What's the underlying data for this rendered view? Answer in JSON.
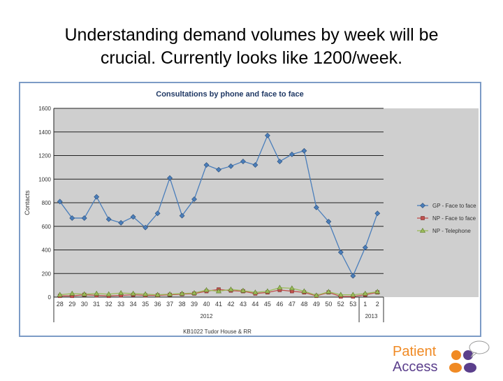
{
  "slide": {
    "title_line1": "Understanding demand volumes by week will be",
    "title_line2": "crucial.  Currently looks like 1200/week."
  },
  "chart_data": {
    "type": "line",
    "title": "Consultations by phone and face to face",
    "ylabel": "Contacts",
    "xlabel": "KB1022 Tudor House & RR",
    "ylim": [
      0,
      1600
    ],
    "yticks": [
      0,
      200,
      400,
      600,
      800,
      1000,
      1200,
      1400,
      1600
    ],
    "grid": true,
    "legend": "right",
    "categories": [
      "28",
      "29",
      "30",
      "31",
      "32",
      "33",
      "34",
      "35",
      "36",
      "37",
      "38",
      "39",
      "40",
      "41",
      "42",
      "43",
      "44",
      "45",
      "46",
      "47",
      "48",
      "49",
      "50",
      "52",
      "53",
      "1",
      "2"
    ],
    "year_groups": [
      {
        "label": "2012",
        "start": 0,
        "end": 24
      },
      {
        "label": "2013",
        "start": 25,
        "end": 26
      }
    ],
    "series": [
      {
        "name": "GP - Face to face",
        "color": "#4a7ebb",
        "marker": "diamond",
        "values": [
          810,
          670,
          670,
          850,
          660,
          630,
          680,
          590,
          710,
          1010,
          690,
          830,
          1120,
          1080,
          1110,
          1150,
          1120,
          1370,
          1150,
          1210,
          1240,
          760,
          640,
          380,
          180,
          420,
          710
        ]
      },
      {
        "name": "NP - Face to face",
        "color": "#c0504d",
        "marker": "square",
        "values": [
          10,
          10,
          20,
          15,
          10,
          15,
          20,
          15,
          15,
          20,
          25,
          30,
          50,
          65,
          55,
          50,
          30,
          40,
          60,
          50,
          40,
          10,
          40,
          5,
          5,
          20,
          40
        ]
      },
      {
        "name": "NP - Telephone",
        "color": "#9bbb59",
        "marker": "triangle",
        "values": [
          20,
          30,
          25,
          30,
          25,
          35,
          30,
          25,
          20,
          25,
          30,
          35,
          60,
          50,
          65,
          55,
          40,
          50,
          80,
          75,
          50,
          15,
          45,
          20,
          20,
          30,
          45
        ]
      }
    ]
  },
  "logo": {
    "line1": "Patient",
    "line2": "Access"
  }
}
